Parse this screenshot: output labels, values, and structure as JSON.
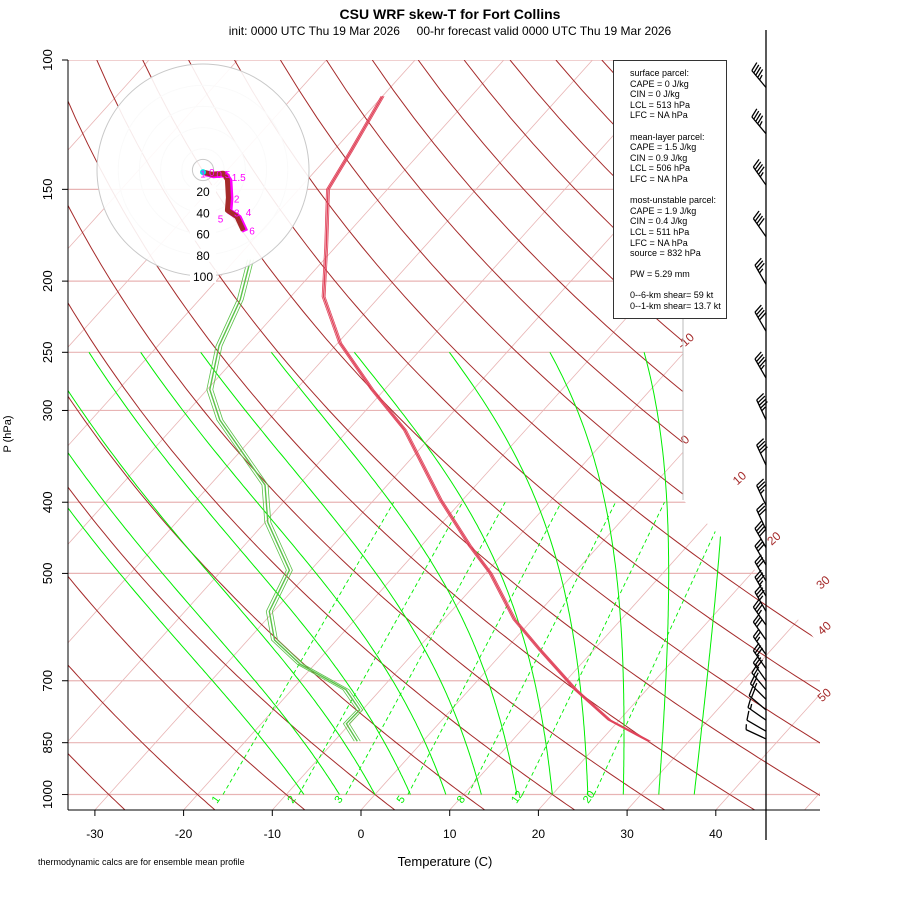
{
  "title": "CSU WRF skew-T for Fort Collins",
  "subtitle": "init: 0000 UTC Thu 19 Mar 2026     00-hr forecast valid 0000 UTC Thu 19 Mar 2026",
  "footnote": "thermodynamic calcs are for ensemble mean profile",
  "legend": {
    "surface": [
      "surface parcel:",
      "CAPE = 0 J/kg",
      "CIN = 0 J/kg",
      "LCL = 513 hPa",
      "LFC = NA hPa"
    ],
    "mean_layer": [
      "mean-layer parcel:",
      "CAPE = 1.5 J/kg",
      "CIN = 0.9 J/kg",
      "LCL = 506 hPa",
      "LFC = NA hPa"
    ],
    "most_unstable": [
      "most-unstable parcel:",
      "CAPE = 1.9 J/kg",
      "CIN = 0.4 J/kg",
      "LCL = 511 hPa",
      "LFC = NA hPa",
      "source = 832 hPa"
    ],
    "pw": "PW =  5.29 mm",
    "shear": [
      "0--6-km shear= 59 kt",
      "0--1-km shear= 13.7 kt"
    ]
  },
  "chart_data": {
    "type": "skew-t",
    "title": "CSU WRF skew-T for Fort Collins",
    "xlabel": "Temperature (C)",
    "ylabel": "P (hPa)",
    "x_ticks": [
      -30,
      -20,
      -10,
      0,
      10,
      20,
      30,
      40
    ],
    "y_ticks": [
      100,
      150,
      200,
      250,
      300,
      400,
      500,
      700,
      850,
      1000
    ],
    "ylim_hpa": [
      1050,
      100
    ],
    "y_scale": "log",
    "isotherm_labels": [
      "-10",
      "0",
      "10",
      "20",
      "30",
      "40",
      "50"
    ],
    "isotherm_label_values": [
      -10,
      0,
      10,
      20,
      30,
      40,
      50
    ],
    "mixing_ratio_labels": [
      "1",
      "2",
      "3",
      "5",
      "8",
      "12",
      "20"
    ],
    "mixing_ratio_values": [
      1,
      2,
      3,
      5,
      8,
      12,
      20
    ],
    "colors": {
      "temperature": "#e0435a",
      "dewpoint": "#5cc24a",
      "dry_adiabat": "#a52a2a",
      "isotherm": "#e8b4b4",
      "moist_adiabat": "#00ee00",
      "mixing_ratio": "#00ee00",
      "hodograph": "#a52a2a",
      "hodograph_alt": "#ff00ff"
    },
    "temperature": [
      [
        846,
        25.5
      ],
      [
        792,
        18.9
      ],
      [
        720,
        12.0
      ],
      [
        635,
        3.9
      ],
      [
        578,
        -2.0
      ],
      [
        500,
        -9.4
      ],
      [
        458,
        -14.6
      ],
      [
        397,
        -22.5
      ],
      [
        319,
        -33.6
      ],
      [
        281,
        -41.4
      ],
      [
        243,
        -49.7
      ],
      [
        210,
        -56.3
      ],
      [
        180,
        -61.0
      ],
      [
        150,
        -66.7
      ],
      [
        133,
        -68.0
      ],
      [
        112,
        -70.0
      ]
    ],
    "dewpoint": [
      [
        846,
        -7.4
      ],
      [
        801,
        -10.4
      ],
      [
        767,
        -10.3
      ],
      [
        720,
        -13.9
      ],
      [
        665,
        -21.6
      ],
      [
        616,
        -27.0
      ],
      [
        563,
        -30.5
      ],
      [
        495,
        -32.4
      ],
      [
        426,
        -39.7
      ],
      [
        379,
        -43.8
      ],
      [
        309,
        -55.5
      ],
      [
        281,
        -59.7
      ],
      [
        245,
        -63.1
      ],
      [
        212,
        -65.4
      ],
      [
        187,
        -68.3
      ]
    ],
    "wind_barbs": [
      [
        840,
        295,
        5
      ],
      [
        820,
        300,
        10
      ],
      [
        792,
        305,
        15
      ],
      [
        767,
        310,
        20
      ],
      [
        742,
        315,
        25
      ],
      [
        720,
        320,
        25
      ],
      [
        700,
        325,
        30
      ],
      [
        674,
        325,
        30
      ],
      [
        645,
        325,
        25
      ],
      [
        616,
        325,
        30
      ],
      [
        588,
        325,
        35
      ],
      [
        563,
        330,
        35
      ],
      [
        537,
        330,
        35
      ],
      [
        512,
        330,
        30
      ],
      [
        487,
        330,
        30
      ],
      [
        461,
        330,
        40
      ],
      [
        436,
        335,
        30
      ],
      [
        404,
        335,
        35
      ],
      [
        356,
        335,
        40
      ],
      [
        309,
        335,
        45
      ],
      [
        271,
        330,
        45
      ],
      [
        234,
        330,
        40
      ],
      [
        202,
        330,
        35
      ],
      [
        174,
        325,
        40
      ],
      [
        148,
        325,
        45
      ],
      [
        126,
        320,
        45
      ],
      [
        109,
        320,
        45
      ]
    ],
    "hodograph": {
      "ring_labels": [
        "20",
        "40",
        "60",
        "80",
        "100"
      ],
      "ring_values": [
        20,
        40,
        60,
        80,
        100
      ],
      "points_uv_kt": [
        [
          0,
          -2
        ],
        [
          8,
          -4
        ],
        [
          19,
          -3
        ],
        [
          23,
          -9
        ],
        [
          24,
          -26
        ],
        [
          23,
          -38
        ],
        [
          32,
          -44
        ],
        [
          38,
          -57
        ]
      ],
      "height_labels": [
        "0",
        "0.5",
        "1",
        "1.5",
        "2",
        "3",
        "4",
        "5",
        "6"
      ]
    }
  }
}
